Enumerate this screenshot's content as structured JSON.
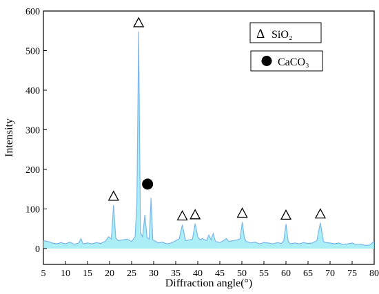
{
  "chart_data": {
    "type": "line",
    "title": "",
    "xlabel": "Diffraction angle(°)",
    "ylabel": "Intensity",
    "xlim": [
      5,
      80
    ],
    "ylim": [
      -40,
      600
    ],
    "x_ticks": [
      5,
      10,
      15,
      20,
      25,
      30,
      35,
      40,
      45,
      50,
      55,
      60,
      65,
      70,
      75,
      80
    ],
    "y_ticks": [
      0,
      100,
      200,
      300,
      400,
      500,
      600
    ],
    "grid": false,
    "line_color": "#7ab8ec",
    "fill_color": "#8fe8f3",
    "legend_position": "top-right",
    "legend": [
      {
        "symbol": "Δ",
        "label": "SiO₂",
        "phase": "SiO2"
      },
      {
        "symbol": "●",
        "label": "CaCO₃",
        "phase": "CaCO3"
      }
    ],
    "peaks": [
      {
        "x": 20.9,
        "y": 110,
        "phase": "SiO2"
      },
      {
        "x": 26.6,
        "y": 548,
        "phase": "SiO2"
      },
      {
        "x": 29.4,
        "y": 128,
        "phase": "CaCO3"
      },
      {
        "x": 36.5,
        "y": 60,
        "phase": "SiO2"
      },
      {
        "x": 39.4,
        "y": 63,
        "phase": "SiO2"
      },
      {
        "x": 50.1,
        "y": 67,
        "phase": "SiO2"
      },
      {
        "x": 60.0,
        "y": 62,
        "phase": "SiO2"
      },
      {
        "x": 67.8,
        "y": 65,
        "phase": "SiO2"
      }
    ],
    "series": [
      {
        "x": [
          5,
          6,
          7,
          8,
          9,
          10,
          11,
          12,
          13,
          13.5,
          14,
          15,
          16,
          17,
          18,
          19,
          19.8,
          20.4,
          20.9,
          21.4,
          22,
          23,
          24,
          25,
          25.8,
          26.2,
          26.6,
          27.0,
          27.5,
          28.0,
          28.5,
          29.0,
          29.4,
          29.8,
          30.5,
          31,
          32,
          33,
          34,
          35,
          35.8,
          36.5,
          37.2,
          38,
          38.8,
          39.4,
          40,
          40.5,
          41,
          42,
          42.5,
          43,
          43.5,
          44,
          45,
          45.8,
          46.5,
          47,
          48,
          49,
          49.6,
          50.1,
          50.6,
          51,
          52,
          53,
          54,
          55,
          56,
          57,
          58,
          59,
          59.5,
          60,
          60.5,
          61,
          62,
          63,
          64,
          65,
          66,
          67,
          67.8,
          68.5,
          69,
          70,
          71,
          72,
          73,
          74,
          75,
          76,
          77,
          78,
          79,
          79.5,
          80
        ],
        "y": [
          20,
          18,
          14,
          12,
          15,
          12,
          16,
          11,
          14,
          25,
          12,
          14,
          12,
          15,
          13,
          18,
          30,
          24,
          110,
          26,
          20,
          22,
          24,
          18,
          30,
          120,
          548,
          40,
          30,
          85,
          28,
          24,
          128,
          22,
          18,
          14,
          16,
          12,
          14,
          20,
          25,
          60,
          20,
          22,
          24,
          63,
          30,
          22,
          25,
          20,
          34,
          22,
          38,
          18,
          15,
          20,
          25,
          18,
          20,
          22,
          25,
          67,
          25,
          18,
          14,
          16,
          12,
          15,
          14,
          12,
          15,
          13,
          20,
          62,
          18,
          12,
          14,
          12,
          15,
          13,
          14,
          20,
          65,
          18,
          15,
          14,
          12,
          14,
          10,
          12,
          14,
          10,
          11,
          8,
          9,
          14,
          16
        ]
      }
    ]
  }
}
